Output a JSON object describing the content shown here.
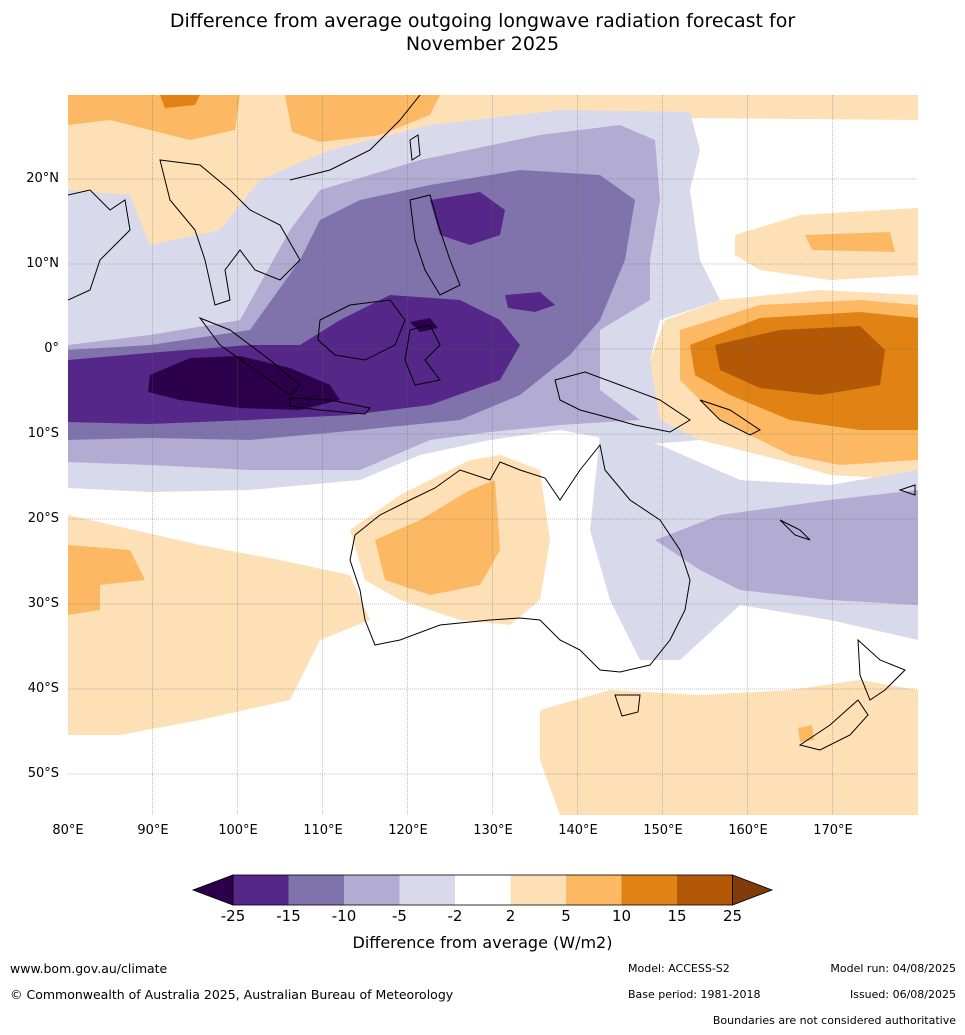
{
  "title_line1": "Difference from average outgoing longwave radiation forecast for",
  "title_line2": "November 2025",
  "lat_labels": [
    "20°N",
    "10°N",
    "0°",
    "10°S",
    "20°S",
    "30°S",
    "40°S",
    "50°S"
  ],
  "lon_labels": [
    "80°E",
    "90°E",
    "100°E",
    "110°E",
    "120°E",
    "130°E",
    "140°E",
    "150°E",
    "160°E",
    "170°E"
  ],
  "colorbar": {
    "title": "Difference from average (W/m2)",
    "ticks": [
      "-25",
      "-15",
      "-10",
      "-5",
      "-2",
      "2",
      "5",
      "10",
      "15",
      "25"
    ],
    "colors": {
      "below_min": "#2d004b",
      "n25_n15": "#542788",
      "n15_n10": "#8073ac",
      "n10_n5": "#b2abd2",
      "n5_n2": "#d8daeb",
      "n2_p2": "#ffffff",
      "p2_p5": "#fee0b6",
      "p5_p10": "#fdb863",
      "p10_p15": "#e08214",
      "p15_p25": "#b35806",
      "above_max": "#7f3b08"
    }
  },
  "footer": {
    "website": "www.bom.gov.au/climate",
    "copyright": "© Commonwealth of Australia 2025, Australian Bureau of Meteorology",
    "model": "Model: ACCESS-S2",
    "base_period": "Base period: 1981-2018",
    "model_run": "Model run: 04/08/2025",
    "issued": "Issued: 06/08/2025",
    "disclaimer": "Boundaries are not considered authoritative"
  }
}
